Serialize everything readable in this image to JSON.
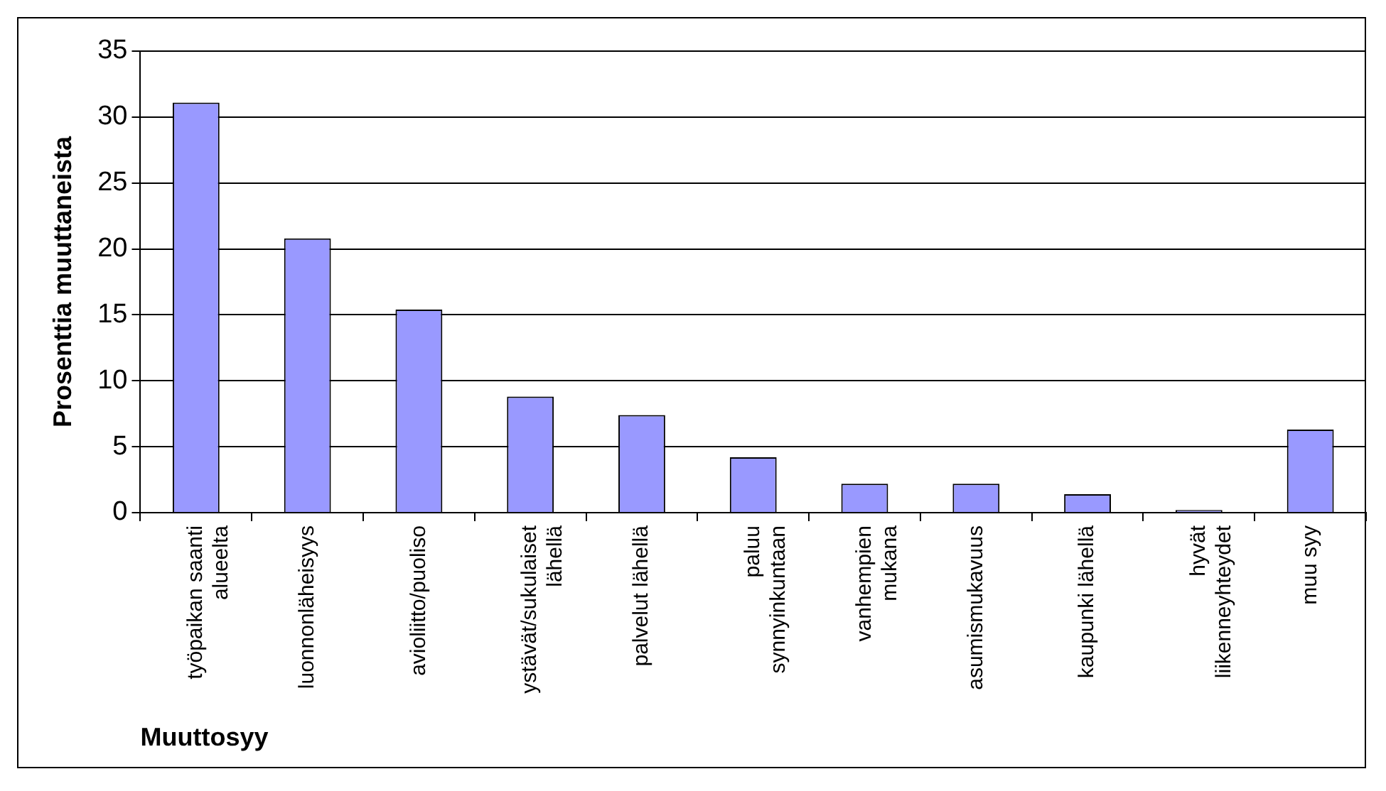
{
  "chart_data": {
    "type": "bar",
    "xlabel": "Muuttosyy",
    "ylabel": "Prosenttia muuttaneista",
    "categories": [
      "työpaikan saanti alueelta",
      "luonnonläheisyys",
      "avioliitto/puoliso",
      "ystävät/sukulaiset lähellä",
      "palvelut lähellä",
      "paluu synnyinkuntaan",
      "vanhempien mukana",
      "asumismukavuus",
      "kaupunki lähellä",
      "hyvät liikenneyhteydet",
      "muu syy"
    ],
    "values": [
      31.1,
      20.8,
      15.4,
      8.8,
      7.4,
      4.2,
      2.2,
      2.2,
      1.4,
      0.2,
      6.3
    ],
    "color": "#9999ff",
    "ylim": [
      0,
      35
    ],
    "yticks": [
      0,
      5,
      10,
      15,
      20,
      25,
      30,
      35
    ],
    "grid": "y",
    "legend": false
  }
}
